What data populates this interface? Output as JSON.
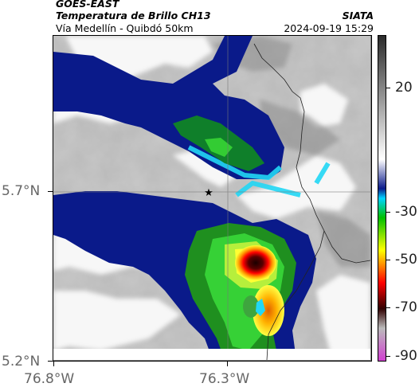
{
  "header": {
    "satellite": "GOES-EAST",
    "product": "Temperatura de Brillo CH13",
    "route": "Vía Medellín - Quibdó 50km",
    "organization": "SIATA",
    "datetime": "2024-09-19 15:29"
  },
  "map": {
    "lat_ticks": [
      "5.7°N",
      "5.2°N"
    ],
    "lon_ticks": [
      "76.8°W",
      "76.3°W"
    ],
    "marker": "star"
  },
  "colorbar": {
    "labels": [
      "20",
      "-30",
      "-50",
      "-70",
      "-90"
    ],
    "colors": [
      "#2b2b2b",
      "#ffffff",
      "#0a1a8a",
      "#00d4ff",
      "#00c000",
      "#ffff00",
      "#ff0000",
      "#300000",
      "#bbbbbb",
      "#d040d0"
    ]
  }
}
